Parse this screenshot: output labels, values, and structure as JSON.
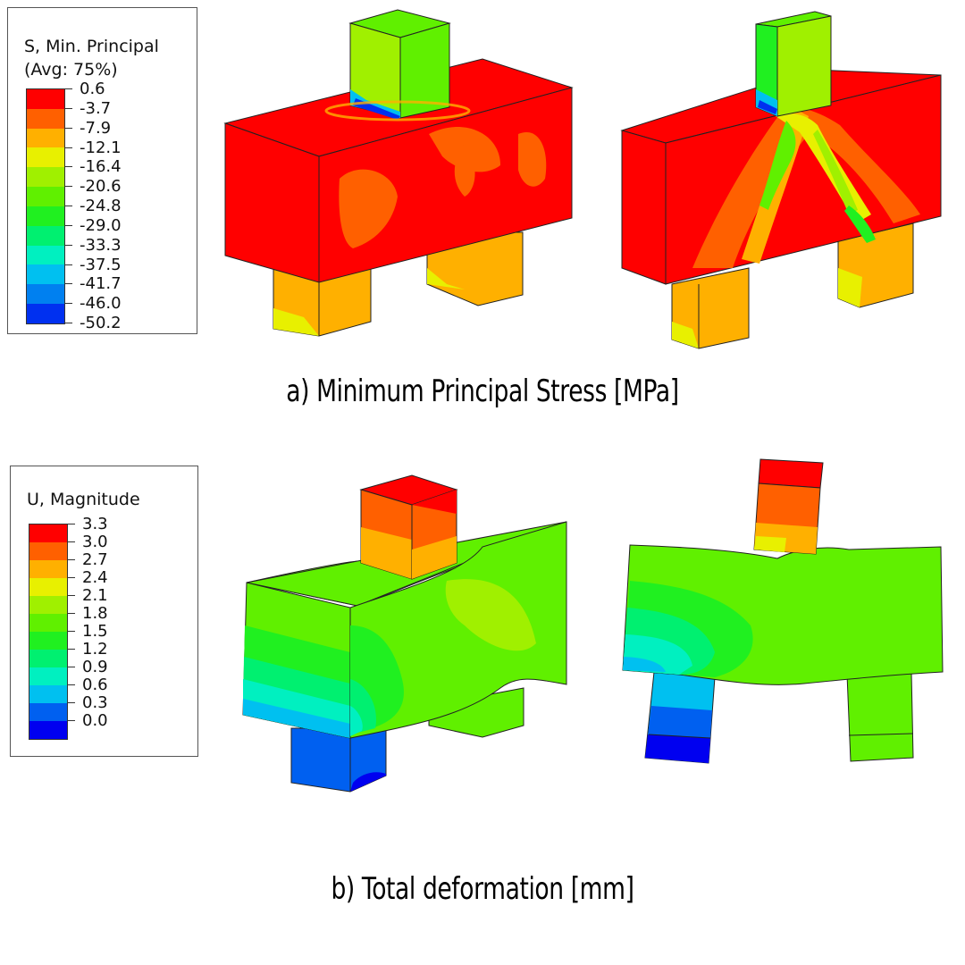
{
  "legend_stress": {
    "title_line1": "S, Min. Principal",
    "title_line2": "(Avg: 75%)",
    "values": [
      "0.6",
      "-3.7",
      "-7.9",
      "-12.1",
      "-16.4",
      "-20.6",
      "-24.8",
      "-29.0",
      "-33.3",
      "-37.5",
      "-41.7",
      "-46.0",
      "-50.2"
    ],
    "colors": [
      "#ff0000",
      "#ff6000",
      "#ffb000",
      "#e8f000",
      "#a0f000",
      "#60f000",
      "#20f020",
      "#00f070",
      "#00f0c0",
      "#00c0f0",
      "#0080f0",
      "#0030f0"
    ]
  },
  "legend_disp": {
    "title": "U, Magnitude",
    "values": [
      "3.3",
      "3.0",
      "2.7",
      "2.4",
      "2.1",
      "1.8",
      "1.5",
      "1.2",
      "0.9",
      "0.6",
      "0.3",
      "0.0"
    ],
    "colors": [
      "#ff0000",
      "#ff6000",
      "#ffb000",
      "#e8f000",
      "#a0f000",
      "#60f000",
      "#20f020",
      "#00f070",
      "#00f0c0",
      "#00c0f0",
      "#0060f0",
      "#0000f0"
    ]
  },
  "captions": {
    "a": "a) Minimum Principal Stress [MPa]",
    "b": "b) Total deformation [mm]"
  }
}
